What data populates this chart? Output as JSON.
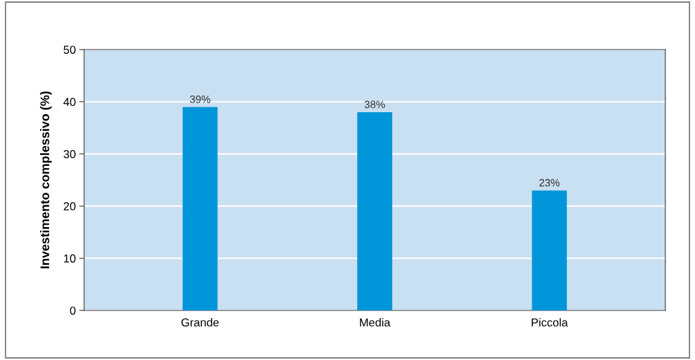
{
  "chart_data": {
    "type": "bar",
    "ylabel": "Investimento complessivo (%)",
    "categories": [
      "Grande",
      "Media",
      "Piccola"
    ],
    "values": [
      39,
      38,
      23
    ],
    "value_labels": [
      "39%",
      "38%",
      "23%"
    ],
    "color": "#0096d9",
    "ylim": [
      0,
      50
    ],
    "yticks": [
      0,
      10,
      20,
      30,
      40,
      50
    ],
    "grid": "y"
  }
}
